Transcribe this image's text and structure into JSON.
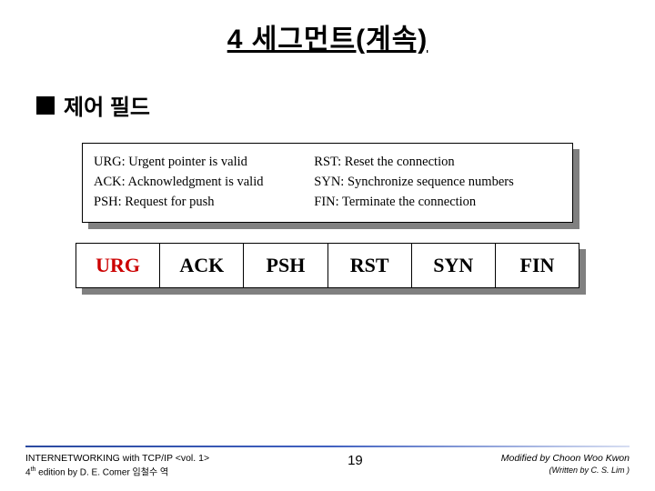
{
  "title": "4 세그먼트(계속)",
  "subheading": "제어 필드",
  "descriptions": {
    "urg": "URG: Urgent pointer is valid",
    "ack": "ACK: Acknowledgment is valid",
    "psh": "PSH: Request for push",
    "rst": "RST: Reset the connection",
    "syn": "SYN: Synchronize sequence numbers",
    "fin": "FIN: Terminate the connection"
  },
  "flags": {
    "urg": "URG",
    "ack": "ACK",
    "psh": "PSH",
    "rst": "RST",
    "syn": "SYN",
    "fin": "FIN"
  },
  "footer": {
    "left_line1": "INTERNETWORKING with TCP/IP <vol. 1>",
    "left_line2_prefix": "4",
    "left_line2_suffix": " edition by D. E. Comer 임철수 역",
    "page": "19",
    "right_line1": "Modified by Choon Woo Kwon",
    "right_line2": "(Written by C. S. Lim )"
  },
  "style": {
    "background": "#ffffff",
    "title_fontsize": 30,
    "subhead_fontsize": 24,
    "desc_fontsize": 14.5,
    "flag_fontsize": 22,
    "urg_color": "#cc0000",
    "shadow_color": "#808080",
    "border_color": "#000000",
    "footer_gradient_from": "#2b4aa0",
    "footer_gradient_mid": "#4060c0",
    "footer_gradient_to": "#d7def2"
  }
}
